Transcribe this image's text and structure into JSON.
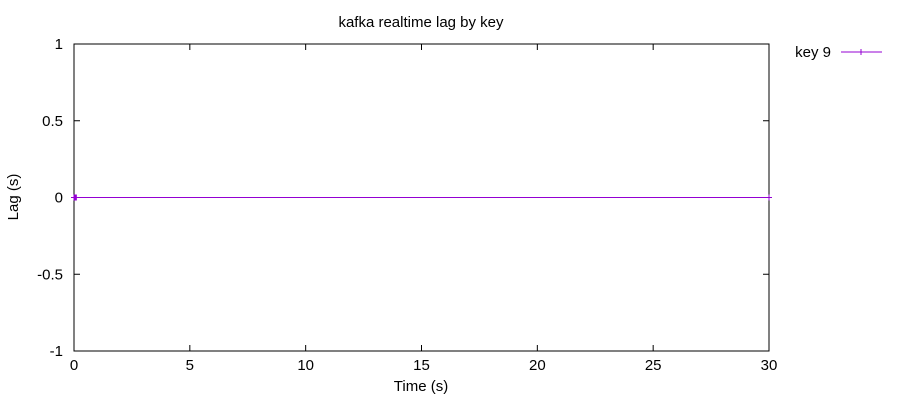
{
  "chart_data": {
    "type": "line",
    "title": "kafka realtime lag by key",
    "xlabel": "Time (s)",
    "ylabel": "Lag (s)",
    "xlim": [
      0,
      30
    ],
    "ylim": [
      -1,
      1
    ],
    "xticks": [
      0,
      5,
      10,
      15,
      20,
      25,
      30
    ],
    "yticks": [
      -1,
      -0.5,
      0,
      0.5,
      1
    ],
    "xtick_labels": [
      "0",
      "5",
      "10",
      "15",
      "20",
      "25",
      "30"
    ],
    "ytick_labels": [
      "-1",
      "-0.5",
      "0",
      "0.5",
      "1"
    ],
    "grid": false,
    "legend_position": "outside-top-right",
    "series": [
      {
        "name": "key 9",
        "color": "#9400d3",
        "marker": "plus",
        "x": [
          0,
          0.01,
          0.02,
          0.03,
          0.04,
          0.05,
          0.06,
          0.07,
          0.08,
          0.09,
          0.1,
          30
        ],
        "y": [
          0,
          0,
          0,
          0,
          0,
          0,
          0,
          0,
          0,
          0,
          0,
          0
        ]
      }
    ]
  }
}
